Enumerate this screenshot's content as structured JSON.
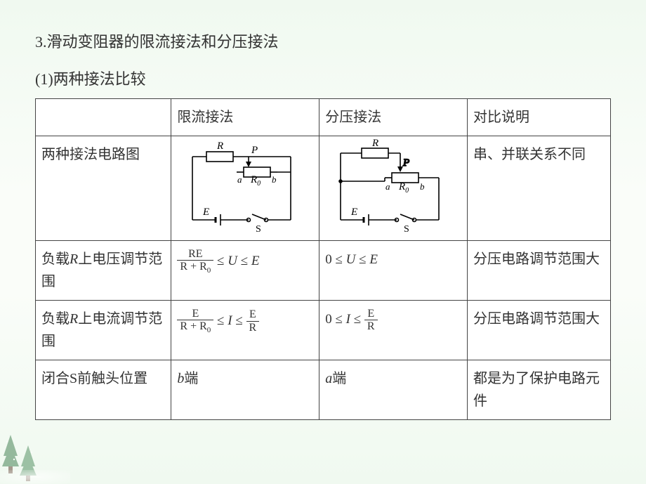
{
  "headings": {
    "title": "3.滑动变阻器的限流接法和分压接法",
    "subtitle": "(1)两种接法比较"
  },
  "table": {
    "header": {
      "col2": "限流接法",
      "col3": "分压接法",
      "col4": "对比说明"
    },
    "rows": [
      {
        "label": "两种接法电路图",
        "col4": "串、并联关系不同"
      },
      {
        "label_html": "负载<span class=\"italic\">R</span>上电压调节范围",
        "col2_html": "<span class=\"formula\"><span class=\"frac\"><span class=\"num\">RE</span><span class=\"den\">R + R<span class=\"sub\">0</span></span></span> ≤ <span class=\"italic\">U</span> ≤ <span class=\"italic\">E</span></span>",
        "col3_html": "<span class=\"formula\">0 ≤ <span class=\"italic\">U</span> ≤ <span class=\"italic\">E</span></span>",
        "col4": "分压电路调节范围大"
      },
      {
        "label_html": "负载<span class=\"italic\">R</span>上电流调节范围",
        "col2_html": "<span class=\"formula\"><span class=\"frac\"><span class=\"num\">E</span><span class=\"den\">R + R<span class=\"sub\">0</span></span></span> ≤ <span class=\"italic\">I</span> ≤ <span class=\"frac\"><span class=\"num\">E</span><span class=\"den\">R</span></span></span>",
        "col3_html": "<span class=\"formula\">0 ≤ <span class=\"italic\">I</span> ≤ <span class=\"frac\"><span class=\"num\">E</span><span class=\"den\">R</span></span></span>",
        "col4": "分压电路调节范围大"
      },
      {
        "label": "闭合S前触头位置",
        "col2_html": "<span class=\"italic\">b</span>端",
        "col3_html": "<span class=\"italic\">a</span>端",
        "col4": "都是为了保护电路元件"
      }
    ]
  },
  "circuit_labels": {
    "R": "R",
    "P": "P",
    "a": "a",
    "b": "b",
    "R0": "R",
    "R0sub": "0",
    "E": "E",
    "S": "S"
  },
  "style": {
    "page_bg_top": "#f0f9f0",
    "page_bg_mid": "#fafdf9",
    "text_color": "#333333",
    "border_color": "#444444",
    "font_size_body": 20,
    "font_size_heading": 22
  }
}
